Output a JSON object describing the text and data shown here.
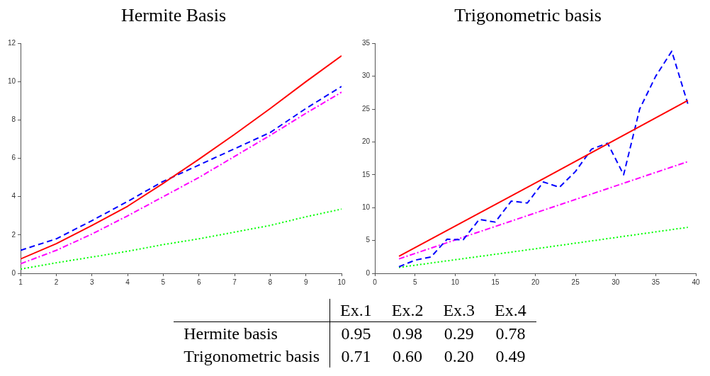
{
  "chart_data": [
    {
      "type": "line",
      "title": "Hermite Basis",
      "x": [
        1,
        2,
        3,
        4,
        5,
        6,
        7,
        8,
        9,
        10
      ],
      "xlim": [
        1,
        10
      ],
      "xticks": [
        1,
        2,
        3,
        4,
        5,
        6,
        7,
        8,
        9,
        10
      ],
      "ylim": [
        0,
        12
      ],
      "yticks": [
        0,
        2,
        4,
        6,
        8,
        10,
        12
      ],
      "grid": false,
      "legend": false,
      "marker": "none",
      "series": [
        {
          "color": "#ff0000",
          "line_style": "solid",
          "values": [
            0.75,
            1.55,
            2.5,
            3.5,
            4.7,
            5.95,
            7.25,
            8.6,
            10.0,
            11.35
          ]
        },
        {
          "color": "#0000ff",
          "line_style": "dashed",
          "values": [
            1.2,
            1.8,
            2.75,
            3.75,
            4.8,
            5.65,
            6.5,
            7.35,
            8.6,
            9.75
          ]
        },
        {
          "color": "#ff00ff",
          "line_style": "dashdot",
          "values": [
            0.5,
            1.2,
            2.05,
            3.0,
            4.0,
            5.0,
            6.1,
            7.2,
            8.35,
            9.45
          ]
        },
        {
          "color": "#00ff00",
          "line_style": "dotted",
          "values": [
            0.22,
            0.55,
            0.85,
            1.15,
            1.5,
            1.8,
            2.15,
            2.5,
            2.95,
            3.35
          ]
        }
      ]
    },
    {
      "type": "line",
      "title": "Trigonometric basis",
      "x": [
        3,
        5,
        7,
        9,
        11,
        13,
        15,
        17,
        19,
        21,
        23,
        25,
        27,
        29,
        31,
        33,
        35,
        37,
        39
      ],
      "xlim": [
        0,
        40
      ],
      "xticks": [
        0,
        5,
        10,
        15,
        20,
        25,
        30,
        35,
        40
      ],
      "ylim": [
        0,
        35
      ],
      "yticks": [
        0,
        5,
        10,
        15,
        20,
        25,
        30,
        35
      ],
      "grid": false,
      "legend": false,
      "marker": "none",
      "series": [
        {
          "color": "#ff0000",
          "line_style": "solid",
          "x": [
            3,
            21,
            39
          ],
          "values": [
            2.6,
            14.4,
            26.3
          ]
        },
        {
          "color": "#0000ff",
          "line_style": "dashed",
          "values": [
            1.0,
            2.0,
            2.5,
            5.2,
            5.1,
            8.2,
            7.8,
            11.0,
            10.7,
            13.9,
            13.1,
            15.5,
            18.9,
            19.8,
            15.0,
            25.0,
            30.0,
            33.8,
            25.8
          ]
        },
        {
          "color": "#ff00ff",
          "line_style": "dashdot",
          "x": [
            3,
            21,
            39
          ],
          "values": [
            2.2,
            9.6,
            17.0
          ]
        },
        {
          "color": "#00ff00",
          "line_style": "dotted",
          "x": [
            3,
            21,
            39
          ],
          "values": [
            0.9,
            3.9,
            7.0
          ]
        }
      ]
    },
    {
      "type": "other",
      "categories": [
        "Ex.1",
        "Ex.2",
        "Ex.3",
        "Ex.4"
      ],
      "y_categories": [
        "Hermite basis",
        "Trigonometric basis"
      ],
      "cell_labels": [
        [
          "0.95",
          "0.98",
          "0.29",
          "0.78"
        ],
        [
          "0.71",
          "0.60",
          "0.20",
          "0.49"
        ]
      ]
    }
  ]
}
